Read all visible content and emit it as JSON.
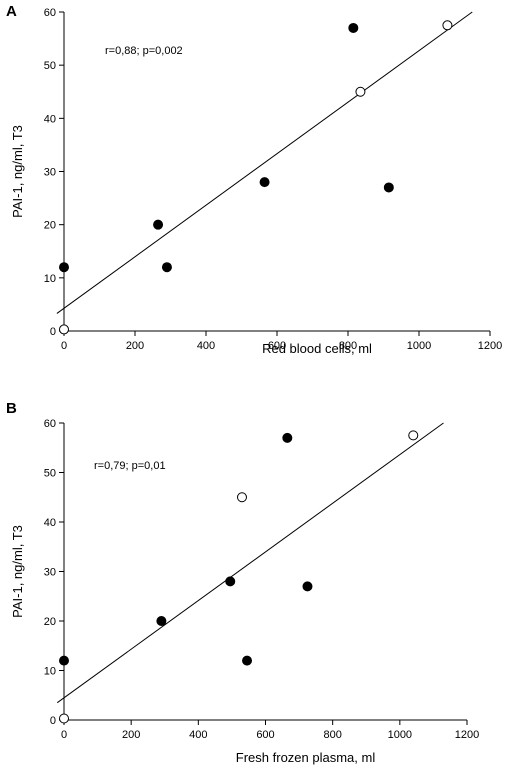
{
  "chart_data": [
    {
      "panel": "A",
      "type": "scatter",
      "xlabel": "Red blood cells, ml",
      "ylabel": "PAI-1, ng/ml, T3",
      "annotation": "r=0,88; p=0,002",
      "xlim": [
        0,
        1200
      ],
      "ylim": [
        0,
        60
      ],
      "xticks": [
        0,
        200,
        400,
        600,
        800,
        1000,
        1200
      ],
      "yticks": [
        0,
        10,
        20,
        30,
        40,
        50,
        60
      ],
      "filled_points": [
        {
          "x": 0,
          "y": 12
        },
        {
          "x": 265,
          "y": 20
        },
        {
          "x": 290,
          "y": 12
        },
        {
          "x": 565,
          "y": 28
        },
        {
          "x": 815,
          "y": 57
        },
        {
          "x": 915,
          "y": 27
        }
      ],
      "open_points": [
        {
          "x": 0,
          "y": 0.3
        },
        {
          "x": 835,
          "y": 45
        },
        {
          "x": 1080,
          "y": 57.5
        }
      ],
      "fit_line": {
        "x": [
          -20,
          1150
        ],
        "y": [
          3.3,
          60
        ]
      }
    },
    {
      "panel": "B",
      "type": "scatter",
      "xlabel": "Fresh frozen plasma, ml",
      "ylabel": "PAI-1, ng/ml, T3",
      "annotation": "r=0,79; p=0,01",
      "xlim": [
        0,
        1200
      ],
      "ylim": [
        0,
        60
      ],
      "xticks": [
        0,
        200,
        400,
        600,
        800,
        1000,
        1200
      ],
      "yticks": [
        0,
        10,
        20,
        30,
        40,
        50,
        60
      ],
      "filled_points": [
        {
          "x": 0,
          "y": 12
        },
        {
          "x": 290,
          "y": 20
        },
        {
          "x": 495,
          "y": 28
        },
        {
          "x": 545,
          "y": 12
        },
        {
          "x": 665,
          "y": 57
        },
        {
          "x": 725,
          "y": 27
        }
      ],
      "open_points": [
        {
          "x": 0,
          "y": 0.3
        },
        {
          "x": 530,
          "y": 45
        },
        {
          "x": 1040,
          "y": 57.5
        }
      ],
      "fit_line": {
        "x": [
          -20,
          1130
        ],
        "y": [
          3.5,
          60
        ]
      }
    }
  ]
}
